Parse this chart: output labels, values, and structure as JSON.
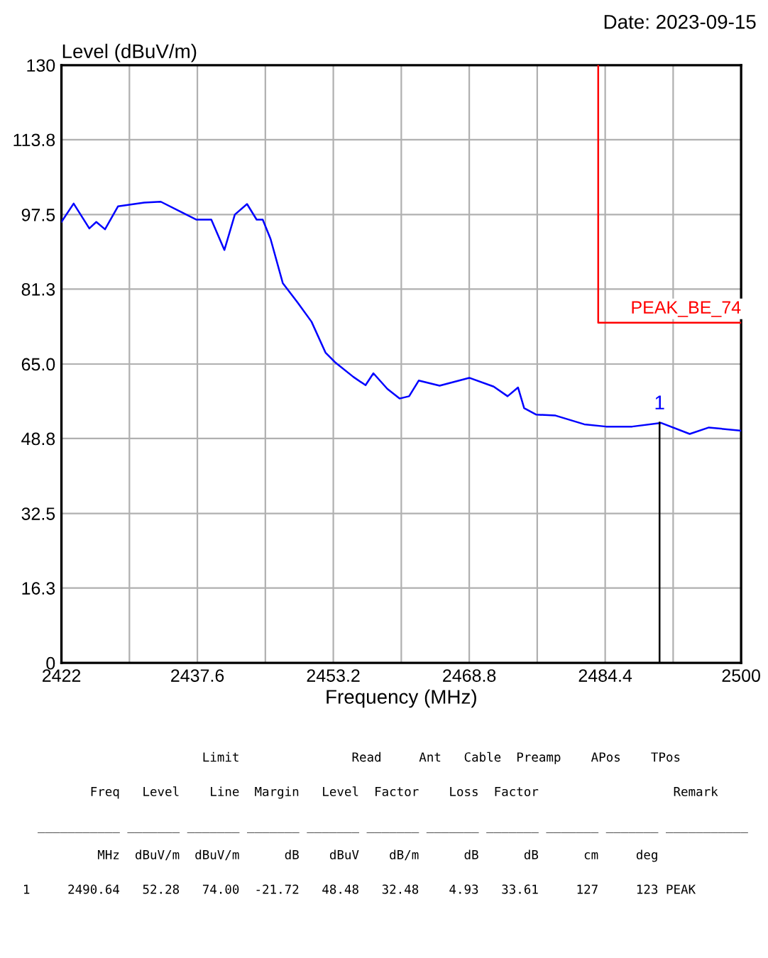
{
  "chart_data": {
    "type": "line",
    "ylabel": "Level (dBuV/m)",
    "xlabel": "Frequency (MHz)",
    "xlim": [
      2422,
      2500
    ],
    "xticks": [
      2422,
      {
        "value": 2429.8,
        "label": null
      },
      2437.6,
      {
        "value": 2445.4,
        "label": null
      },
      2453.2,
      {
        "value": 2461,
        "label": null
      },
      2468.8,
      {
        "value": 2476.6,
        "label": null
      },
      2484.4,
      {
        "value": 2492.2,
        "label": null
      },
      2500
    ],
    "ylim": [
      0,
      130
    ],
    "yticks": [
      0,
      16.3,
      32.5,
      48.8,
      {
        "value": 65,
        "label": "65.0"
      },
      81.3,
      97.5,
      113.8,
      130
    ],
    "grid": true,
    "legend": false,
    "series": [
      {
        "color": "#0000ff",
        "x": [
          2422,
          2423.4,
          2425.2,
          2426.0,
          2427.0,
          2428.5,
          2431.5,
          2433.4,
          2435.6,
          2437.5,
          2439.2,
          2440.7,
          2441.9,
          2443.3,
          2444.4,
          2445.1,
          2446.0,
          2447.4,
          2449.1,
          2450.7,
          2452.3,
          2453.4,
          2455.5,
          2456.9,
          2457.8,
          2459.4,
          2460.8,
          2461.9,
          2463.0,
          2465.4,
          2468.8,
          2471.6,
          2473.2,
          2474.4,
          2475.1,
          2476.5,
          2478.7,
          2482.0,
          2484.5,
          2487.5,
          2490.8,
          2494.1,
          2496.3,
          2500
        ],
        "values": [
          95.9,
          99.9,
          94.5,
          95.9,
          94.3,
          99.3,
          100.1,
          100.3,
          98.2,
          96.4,
          96.4,
          89.8,
          97.5,
          99.8,
          96.4,
          96.4,
          92.2,
          82.6,
          78.4,
          74.2,
          67.5,
          65.4,
          62.2,
          60.4,
          63.0,
          59.6,
          57.5,
          58.0,
          61.4,
          60.3,
          62.0,
          60.1,
          58.0,
          59.9,
          55.4,
          54.0,
          53.8,
          51.9,
          51.4,
          51.4,
          52.2,
          49.8,
          51.2,
          50.5
        ]
      },
      {
        "name": "PEAK_BE_74",
        "color": "#ff0000",
        "x": [
          2483.6,
          2483.6,
          2500
        ],
        "values": [
          130,
          74,
          74
        ]
      },
      {
        "color": "#000000",
        "x": [
          2490.64,
          2490.64
        ],
        "values": [
          0,
          52.28
        ]
      }
    ],
    "annotations": [
      "Date: 2023-09-15",
      {
        "text": "1",
        "x": 2490.64,
        "y": 52.28
      },
      "                          Limit               Read     Ant   Cable  Preamp    APos    TPos",
      "           Freq   Level    Line  Margin   Level  Factor    Loss  Factor                  Remark",
      "    ___________ _______ _______ _______ _______ _______ _______ _______ _______ _______ ___________",
      "            MHz  dBuV/m  dBuV/m      dB    dBuV    dB/m      dB      dB      cm     deg",
      "  1     2490.64   52.28   74.00  -21.72   48.48   32.48    4.93   33.61     127     123 PEAK"
    ]
  }
}
